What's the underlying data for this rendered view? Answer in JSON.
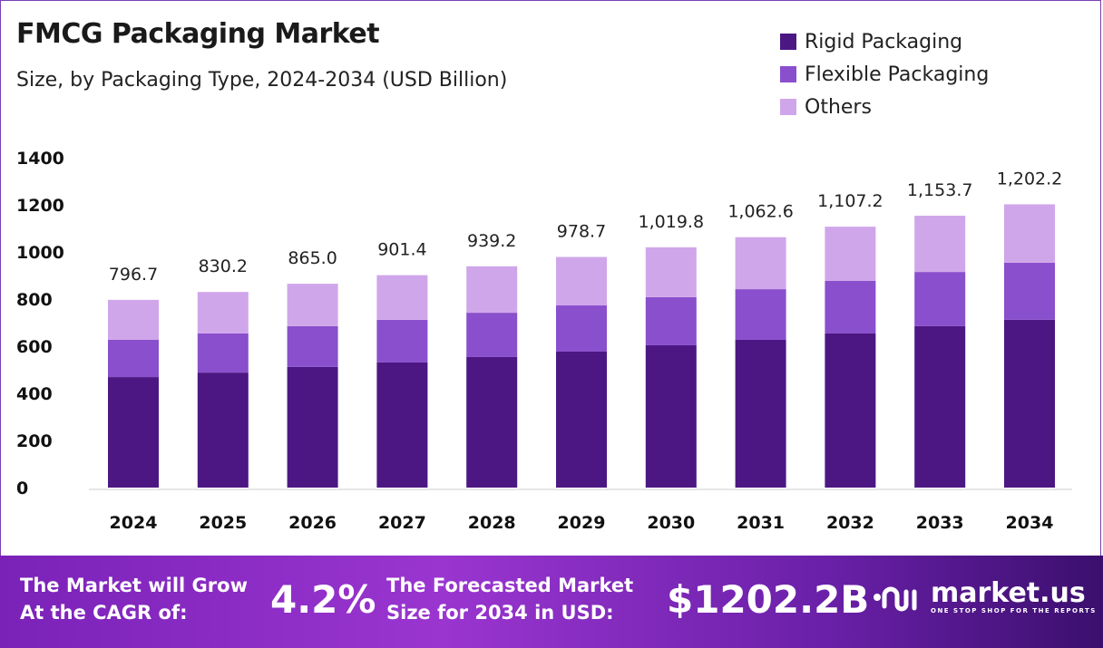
{
  "chart_data": {
    "type": "bar",
    "stacked": true,
    "title": "FMCG Packaging Market",
    "subtitle": "Size, by Packaging Type, 2024-2034 (USD Billion)",
    "categories": [
      "2024",
      "2025",
      "2026",
      "2027",
      "2028",
      "2029",
      "2030",
      "2031",
      "2032",
      "2033",
      "2034"
    ],
    "series": [
      {
        "name": "Rigid Packaging",
        "color": "#4c1783",
        "values": [
          469,
          488,
          512,
          531,
          554,
          577,
          604,
          627,
          654,
          685,
          712
        ]
      },
      {
        "name": "Flexible Packaging",
        "color": "#8a4fcc",
        "values": [
          158,
          166,
          173,
          181,
          188,
          196,
          204,
          215,
          223,
          230,
          242
        ]
      },
      {
        "name": "Others",
        "color": "#d0a6ea",
        "values": [
          169.7,
          176.2,
          180.0,
          189.4,
          197.2,
          205.7,
          211.8,
          220.6,
          230.2,
          238.7,
          248.2
        ]
      }
    ],
    "totals": [
      796.7,
      830.2,
      865.0,
      901.4,
      939.2,
      978.7,
      1019.8,
      1062.6,
      1107.2,
      1153.7,
      1202.2
    ],
    "total_labels": [
      "796.7",
      "830.2",
      "865.0",
      "901.4",
      "939.2",
      "978.7",
      "1,019.8",
      "1,062.6",
      "1,107.2",
      "1,153.7",
      "1,202.2"
    ],
    "ylim": [
      0,
      1400
    ],
    "yticks": [
      "0",
      "200",
      "400",
      "600",
      "800",
      "1000",
      "1200",
      "1400"
    ],
    "grid": false,
    "legend": "top-right"
  },
  "footer": {
    "cagr_text_1": "The Market will Grow",
    "cagr_text_2": "At the CAGR of:",
    "cagr_value": "4.2%",
    "forecast_text_1": "The Forecasted Market",
    "forecast_text_2": "Size for 2034 in USD:",
    "forecast_value": "$1202.2B",
    "brand": "market.us",
    "tagline": "ONE STOP SHOP FOR THE REPORTS"
  }
}
